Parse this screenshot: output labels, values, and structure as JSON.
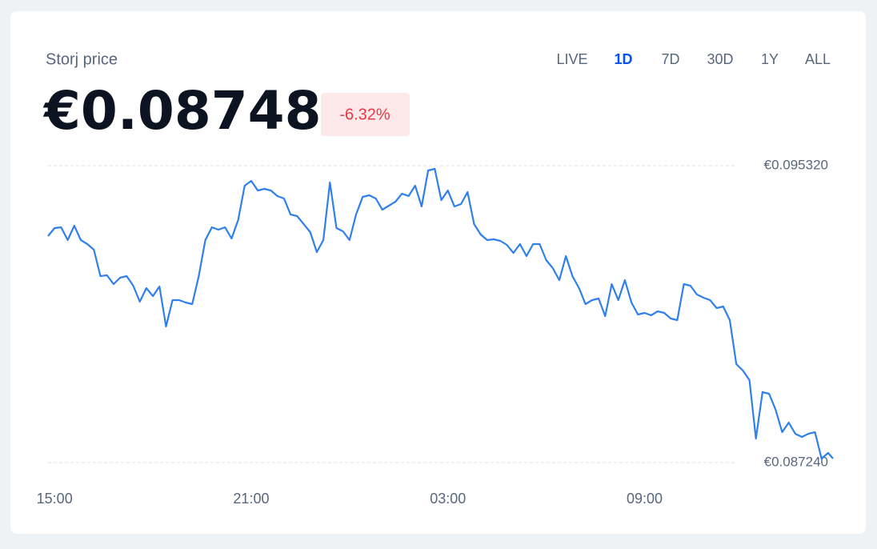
{
  "header": {
    "title": "Storj price",
    "price": "€0.08748",
    "change": "-6.32%"
  },
  "ranges": [
    "LIVE",
    "1D",
    "7D",
    "30D",
    "1Y",
    "ALL"
  ],
  "selected_range": "1D",
  "chart_data": {
    "type": "line",
    "x": [
      14.8,
      15.0,
      15.2,
      15.4,
      15.6,
      15.8,
      16.0,
      16.2,
      16.4,
      16.6,
      16.8,
      17.0,
      17.2,
      17.4,
      17.6,
      17.8,
      18.0,
      18.2,
      18.4,
      18.6,
      18.8,
      19.0,
      19.2,
      19.4,
      19.6,
      19.8,
      20.0,
      20.2,
      20.4,
      20.6,
      20.8,
      21.0,
      21.2,
      21.4,
      21.6,
      21.8,
      22.0,
      22.2,
      22.4,
      22.6,
      22.8,
      23.0,
      23.2,
      23.4,
      23.6,
      23.8,
      24.0,
      24.2,
      24.4,
      24.6,
      24.8,
      25.0,
      25.2,
      25.4,
      25.6,
      25.8,
      26.0,
      26.2,
      26.4,
      26.6,
      26.8,
      27.0,
      27.2,
      27.4,
      27.6,
      27.8,
      28.0,
      28.2,
      28.4,
      28.6,
      28.8,
      29.0,
      29.2,
      29.4,
      29.6,
      29.8,
      30.0,
      30.2,
      30.4,
      30.6,
      30.8,
      31.0,
      31.2,
      31.4,
      31.6,
      31.8,
      32.0,
      32.2,
      32.4,
      32.6,
      32.8,
      33.0,
      33.2,
      33.4,
      33.6,
      33.8,
      34.0,
      34.2,
      34.4,
      34.6,
      34.8,
      35.0,
      35.2,
      35.4,
      35.6,
      35.8,
      36.0,
      36.2,
      36.4,
      36.6,
      36.8,
      37.0,
      37.2,
      37.4,
      37.6,
      37.8,
      38.0,
      38.2,
      38.4,
      38.6,
      38.75
    ],
    "series": [
      {
        "name": "Storj price",
        "color": "#2f80ed",
        "values": [
          0.093403,
          0.093621,
          0.093643,
          0.093294,
          0.093686,
          0.093294,
          0.093186,
          0.093033,
          0.092314,
          0.092336,
          0.092097,
          0.092271,
          0.092314,
          0.092053,
          0.091617,
          0.091988,
          0.09177,
          0.092031,
          0.090942,
          0.091661,
          0.091661,
          0.091596,
          0.091552,
          0.092314,
          0.093294,
          0.093643,
          0.093578,
          0.093643,
          0.093338,
          0.093839,
          0.094775,
          0.094906,
          0.094645,
          0.094688,
          0.094645,
          0.094492,
          0.094427,
          0.093991,
          0.093948,
          0.09373,
          0.093512,
          0.092968,
          0.093294,
          0.094863,
          0.093621,
          0.093534,
          0.093294,
          0.093991,
          0.094471,
          0.094514,
          0.094427,
          0.094122,
          0.094231,
          0.09434,
          0.094558,
          0.094492,
          0.094775,
          0.094209,
          0.095189,
          0.095233,
          0.094383,
          0.094645,
          0.094209,
          0.094275,
          0.094601,
          0.09373,
          0.093447,
          0.093294,
          0.093316,
          0.093273,
          0.093164,
          0.092946,
          0.093186,
          0.092859,
          0.093186,
          0.093186,
          0.09275,
          0.092532,
          0.092205,
          0.092859,
          0.092314,
          0.091988,
          0.091552,
          0.091661,
          0.091705,
          0.091225,
          0.092097,
          0.091661,
          0.092205,
          0.091596,
          0.091269,
          0.091312,
          0.091247,
          0.091356,
          0.091312,
          0.09116,
          0.091116,
          0.092097,
          0.092053,
          0.091813,
          0.091726,
          0.091661,
          0.091443,
          0.091487,
          0.091116,
          0.089919,
          0.089744,
          0.089483,
          0.087893,
          0.089156,
          0.089113,
          0.088677,
          0.088067,
          0.088329,
          0.088024,
          0.087937,
          0.088024,
          0.088067,
          0.087349,
          0.087501,
          0.087349
        ]
      }
    ],
    "xlim": [
      14.8,
      38.75
    ],
    "xticks": [
      {
        "value": 15,
        "label": "15:00"
      },
      {
        "value": 21,
        "label": "21:00"
      },
      {
        "value": 27,
        "label": "03:00"
      },
      {
        "value": 33,
        "label": "09:00"
      }
    ],
    "ylim": [
      0.08724,
      0.09532
    ],
    "yticks": [
      {
        "value": 0.09532,
        "label": "€0.095320"
      },
      {
        "value": 0.08724,
        "label": "€0.087240"
      }
    ],
    "grid": true
  }
}
